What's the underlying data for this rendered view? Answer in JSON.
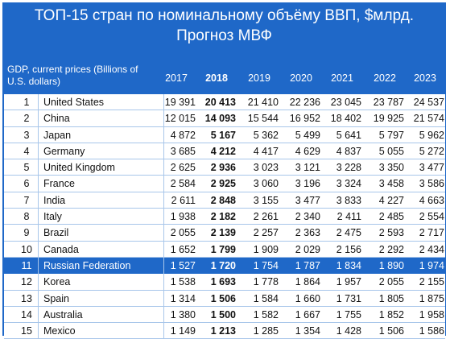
{
  "title_line1": "ТОП-15 стран по номинальному объёму ВВП, $млрд.",
  "title_line2": "Прогноз МВФ",
  "colors": {
    "header_blue": "#1f68c8",
    "grid": "#a8c6ea"
  },
  "chart_data": {
    "type": "table",
    "header_label": "GDP, current prices (Billions of U.S. dollars)",
    "years": [
      "2017",
      "2018",
      "2019",
      "2020",
      "2021",
      "2022",
      "2023"
    ],
    "bold_year": "2018",
    "highlight_country": "Russian Federation",
    "rows": [
      {
        "rank": "1",
        "country": "United States",
        "values": [
          "19 391",
          "20 413",
          "21 410",
          "22 236",
          "23 045",
          "23 787",
          "24 537"
        ]
      },
      {
        "rank": "2",
        "country": "China",
        "values": [
          "12 015",
          "14 093",
          "15 544",
          "16 952",
          "18 402",
          "19 925",
          "21 574"
        ]
      },
      {
        "rank": "3",
        "country": "Japan",
        "values": [
          "4 872",
          "5 167",
          "5 362",
          "5 499",
          "5 641",
          "5 797",
          "5 962"
        ]
      },
      {
        "rank": "4",
        "country": "Germany",
        "values": [
          "3 685",
          "4 212",
          "4 417",
          "4 629",
          "4 837",
          "5 055",
          "5 272"
        ]
      },
      {
        "rank": "5",
        "country": "United Kingdom",
        "values": [
          "2 625",
          "2 936",
          "3 023",
          "3 121",
          "3 228",
          "3 350",
          "3 477"
        ]
      },
      {
        "rank": "6",
        "country": "France",
        "values": [
          "2 584",
          "2 925",
          "3 060",
          "3 196",
          "3 324",
          "3 458",
          "3 586"
        ]
      },
      {
        "rank": "7",
        "country": "India",
        "values": [
          "2 611",
          "2 848",
          "3 155",
          "3 477",
          "3 833",
          "4 227",
          "4 663"
        ]
      },
      {
        "rank": "8",
        "country": "Italy",
        "values": [
          "1 938",
          "2 182",
          "2 261",
          "2 340",
          "2 411",
          "2 485",
          "2 554"
        ]
      },
      {
        "rank": "9",
        "country": "Brazil",
        "values": [
          "2 055",
          "2 139",
          "2 257",
          "2 363",
          "2 475",
          "2 593",
          "2 717"
        ]
      },
      {
        "rank": "10",
        "country": "Canada",
        "values": [
          "1 652",
          "1 799",
          "1 909",
          "2 029",
          "2 156",
          "2 292",
          "2 434"
        ]
      },
      {
        "rank": "11",
        "country": "Russian Federation",
        "values": [
          "1 527",
          "1 720",
          "1 754",
          "1 787",
          "1 834",
          "1 890",
          "1 974"
        ]
      },
      {
        "rank": "12",
        "country": "Korea",
        "values": [
          "1 538",
          "1 693",
          "1 778",
          "1 864",
          "1 957",
          "2 055",
          "2 155"
        ]
      },
      {
        "rank": "13",
        "country": "Spain",
        "values": [
          "1 314",
          "1 506",
          "1 584",
          "1 660",
          "1 731",
          "1 805",
          "1 875"
        ]
      },
      {
        "rank": "14",
        "country": "Australia",
        "values": [
          "1 380",
          "1 500",
          "1 582",
          "1 667",
          "1 755",
          "1 852",
          "1 958"
        ]
      },
      {
        "rank": "15",
        "country": "Mexico",
        "values": [
          "1 149",
          "1 213",
          "1 285",
          "1 354",
          "1 428",
          "1 506",
          "1 586"
        ]
      }
    ]
  }
}
